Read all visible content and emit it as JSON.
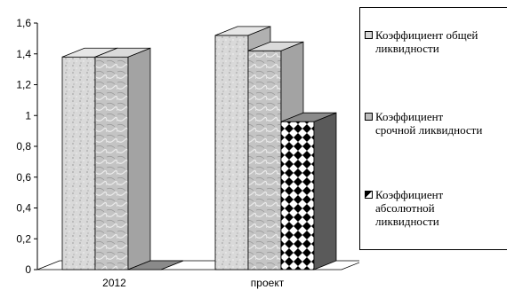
{
  "chart_data": {
    "type": "bar",
    "categories": [
      "2012",
      "проект"
    ],
    "series": [
      {
        "name": "Коэффициент общей\nликвидности",
        "values": [
          1.38,
          1.52
        ]
      },
      {
        "name": "Коэффициент\nсрочной ликвидности",
        "values": [
          1.38,
          1.42
        ]
      },
      {
        "name": "Коэффициент\nабсолютной\nликвидности",
        "values": [
          0,
          0.96
        ]
      }
    ],
    "ylim": [
      0,
      1.6
    ],
    "yticks": [
      "0",
      "0,2",
      "0,4",
      "0,6",
      "0,8",
      "1",
      "1,2",
      "1,4",
      "1,6"
    ],
    "legend": "right",
    "grid": false,
    "style": "3d",
    "colors": [
      "#d8d8d8",
      "#bdbdbd",
      "#000000"
    ]
  }
}
